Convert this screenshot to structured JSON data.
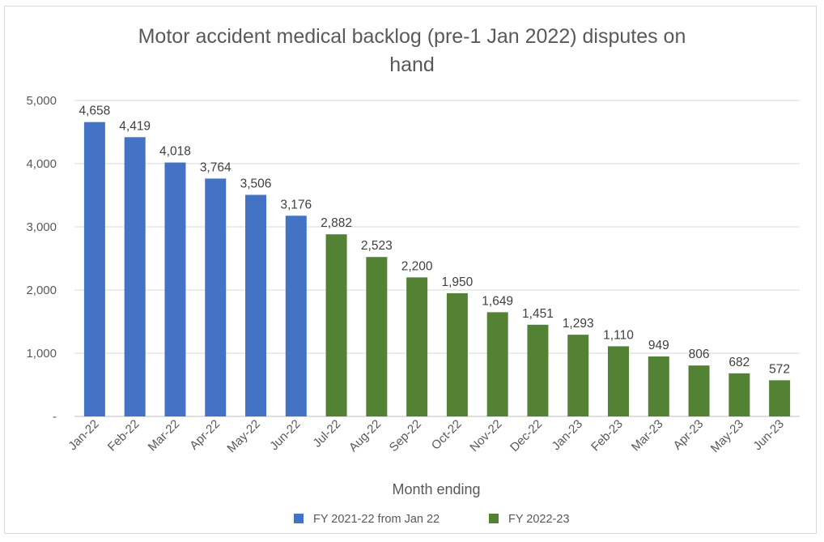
{
  "chart_data": {
    "type": "bar",
    "title_lines": [
      "Motor accident medical backlog (pre-1 Jan 2022) disputes on",
      "hand"
    ],
    "xlabel": "Month ending",
    "ylabel": "",
    "ylim": [
      0,
      5000
    ],
    "yticks": [
      0,
      1000,
      2000,
      3000,
      4000,
      5000
    ],
    "ytick_labels": [
      "-",
      "1,000",
      "2,000",
      "3,000",
      "4,000",
      "5,000"
    ],
    "grid": true,
    "legend_position": "bottom",
    "categories": [
      "Jan-22",
      "Feb-22",
      "Mar-22",
      "Apr-22",
      "May-22",
      "Jun-22",
      "Jul-22",
      "Aug-22",
      "Sep-22",
      "Oct-22",
      "Nov-22",
      "Dec-22",
      "Jan-23",
      "Feb-23",
      "Mar-23",
      "Apr-23",
      "May-23",
      "Jun-23"
    ],
    "values": [
      4658,
      4419,
      4018,
      3764,
      3506,
      3176,
      2882,
      2523,
      2200,
      1950,
      1649,
      1451,
      1293,
      1110,
      949,
      806,
      682,
      572
    ],
    "value_labels": [
      "4,658",
      "4,419",
      "4,018",
      "3,764",
      "3,506",
      "3,176",
      "2,882",
      "2,523",
      "2,200",
      "1,950",
      "1,649",
      "1,451",
      "1,293",
      "1,110",
      "949",
      "806",
      "682",
      "572"
    ],
    "bar_series_index": [
      0,
      0,
      0,
      0,
      0,
      0,
      1,
      1,
      1,
      1,
      1,
      1,
      1,
      1,
      1,
      1,
      1,
      1
    ],
    "series": [
      {
        "name": "FY 2021-22 from Jan 22",
        "color": "#4472c4"
      },
      {
        "name": "FY 2022-23",
        "color": "#548235"
      }
    ]
  }
}
